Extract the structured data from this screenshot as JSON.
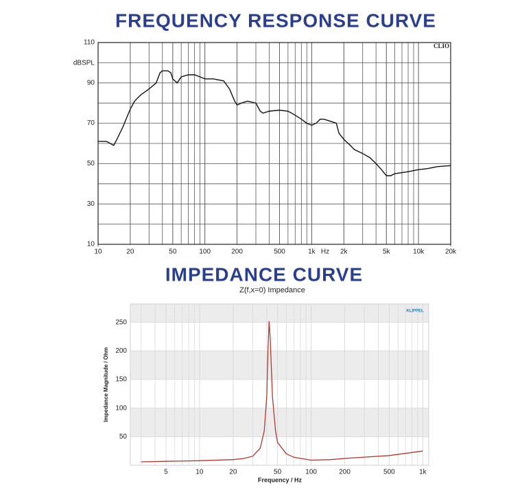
{
  "chart_data": [
    {
      "type": "line",
      "title": "FREQUENCY RESPONSE CURVE",
      "y_label": "dBSPL",
      "x_label": "Hz",
      "watermark": "CLIO",
      "log_x": true,
      "minor_grid": true,
      "color": "#111111",
      "xlim": [
        10,
        20000
      ],
      "ylim": [
        10,
        110
      ],
      "xticks": [
        10,
        20,
        50,
        100,
        200,
        500,
        {
          "value": 1000,
          "label": "1k"
        },
        {
          "value": 2000,
          "label": "2k"
        },
        {
          "value": 5000,
          "label": "5k"
        },
        {
          "value": 10000,
          "label": "10k"
        },
        {
          "value": 20000,
          "label": "20k"
        }
      ],
      "yticks": [
        10,
        30,
        50,
        70,
        90,
        110
      ],
      "x": [
        10,
        12,
        13,
        14,
        15,
        17,
        20,
        22,
        25,
        30,
        35,
        38,
        40,
        45,
        48,
        50,
        55,
        60,
        70,
        80,
        90,
        100,
        120,
        150,
        170,
        190,
        200,
        220,
        250,
        300,
        330,
        350,
        400,
        500,
        600,
        700,
        800,
        900,
        1000,
        1100,
        1200,
        1300,
        1500,
        1700,
        1800,
        2000,
        2300,
        2500,
        3000,
        3500,
        4000,
        4500,
        5000,
        5500,
        6000,
        7000,
        8000,
        10000,
        12000,
        15000,
        20000
      ],
      "values": [
        61,
        61,
        60,
        59,
        62,
        68,
        77,
        81,
        84,
        87,
        90,
        95,
        96,
        96,
        95,
        92,
        90,
        93,
        94,
        94,
        93,
        92,
        92,
        91,
        87,
        81,
        79,
        80,
        81,
        80,
        76,
        75,
        76,
        76.5,
        76,
        74,
        72,
        70,
        69,
        70,
        72,
        72,
        71,
        70,
        65,
        62,
        59,
        57,
        55,
        53,
        50,
        47,
        44,
        44,
        45,
        45.5,
        46,
        47,
        47.5,
        48.5,
        49
      ]
    },
    {
      "type": "line",
      "title": "IMPEDANCE CURVE",
      "subtitle": "Z(f,x=0) Impedance",
      "x_label": "Frequency / Hz",
      "y_label": "Impedance Magnitude / Ohm",
      "logo": "KLIPPEL",
      "log_x": true,
      "banded_grid": true,
      "color": "#b0392e",
      "xlim": [
        2.4,
        1130
      ],
      "ylim": [
        0,
        282
      ],
      "xticks": [
        5,
        10,
        20,
        50,
        100,
        200,
        500,
        {
          "value": 1000,
          "label": "1k"
        }
      ],
      "yticks": [
        50,
        100,
        150,
        200,
        250
      ],
      "x": [
        3,
        5,
        10,
        20,
        25,
        30,
        35,
        38,
        40,
        41,
        42,
        43,
        45,
        48,
        50,
        60,
        70,
        100,
        150,
        200,
        500,
        1000
      ],
      "values": [
        6,
        7,
        8,
        10,
        12,
        16,
        30,
        60,
        120,
        200,
        252,
        220,
        120,
        60,
        40,
        20,
        14,
        9,
        10,
        12,
        17,
        25
      ]
    }
  ]
}
